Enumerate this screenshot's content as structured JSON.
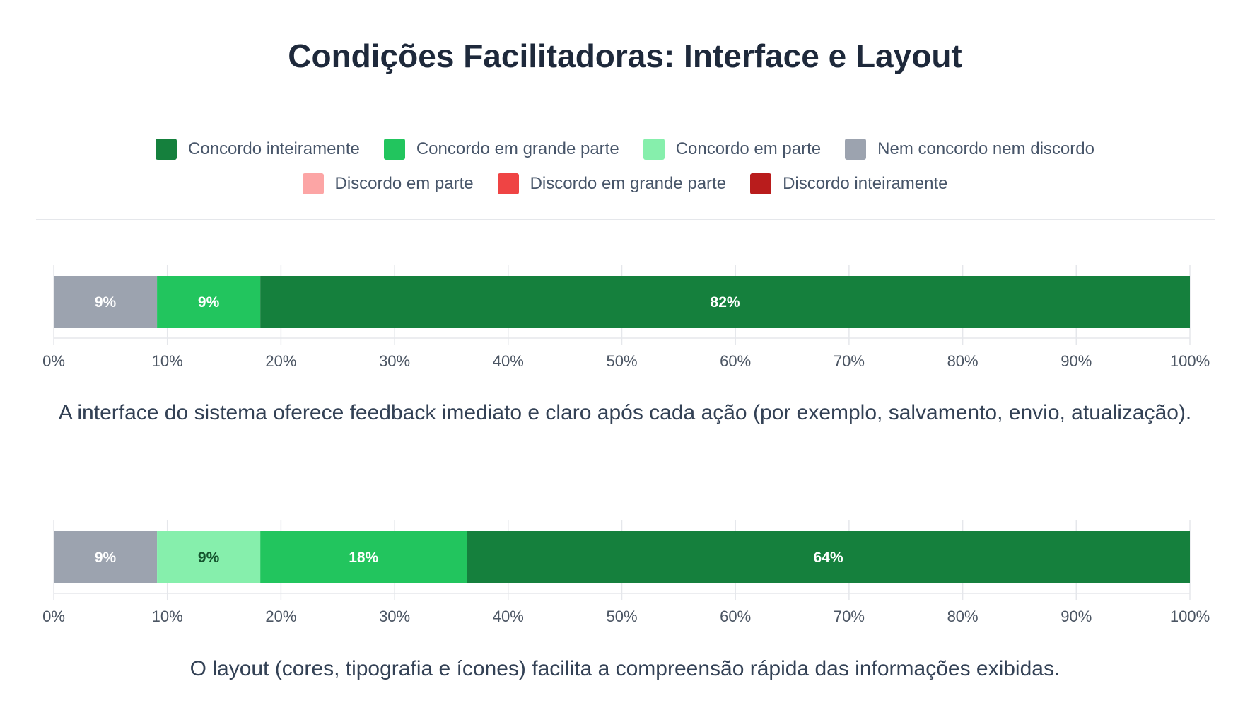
{
  "title": "Condições Facilitadoras: Interface e Layout",
  "legend": [
    {
      "label": "Concordo inteiramente",
      "color": "#15803d"
    },
    {
      "label": "Concordo em grande parte",
      "color": "#22c55e"
    },
    {
      "label": "Concordo em parte",
      "color": "#86efac"
    },
    {
      "label": "Nem concordo nem discordo",
      "color": "#9ca3af"
    },
    {
      "label": "Discordo em parte",
      "color": "#fca5a5"
    },
    {
      "label": "Discordo em grande parte",
      "color": "#ef4444"
    },
    {
      "label": "Discordo inteiramente",
      "color": "#b91c1c"
    }
  ],
  "chart_data": [
    {
      "type": "bar",
      "orientation": "horizontal-stacked",
      "xlim": [
        0,
        100
      ],
      "xticks": [
        "0%",
        "10%",
        "20%",
        "30%",
        "40%",
        "50%",
        "60%",
        "70%",
        "80%",
        "90%",
        "100%"
      ],
      "question": "A interface do sistema oferece feedback imediato e claro após cada ação (por exemplo, salvamento, envio, atualização).",
      "segments": [
        {
          "category": "Nem concordo nem discordo",
          "value": 9.09,
          "label": "9%",
          "color": "#9ca3af",
          "text_color": "#ffffff"
        },
        {
          "category": "Concordo em grande parte",
          "value": 9.09,
          "label": "9%",
          "color": "#22c55e",
          "text_color": "#ffffff"
        },
        {
          "category": "Concordo inteiramente",
          "value": 81.82,
          "label": "82%",
          "color": "#15803d",
          "text_color": "#ffffff"
        }
      ]
    },
    {
      "type": "bar",
      "orientation": "horizontal-stacked",
      "xlim": [
        0,
        100
      ],
      "xticks": [
        "0%",
        "10%",
        "20%",
        "30%",
        "40%",
        "50%",
        "60%",
        "70%",
        "80%",
        "90%",
        "100%"
      ],
      "question": "O layout (cores, tipografia e ícones) facilita a compreensão rápida das informações exibidas.",
      "segments": [
        {
          "category": "Nem concordo nem discordo",
          "value": 9.09,
          "label": "9%",
          "color": "#9ca3af",
          "text_color": "#ffffff"
        },
        {
          "category": "Concordo em parte",
          "value": 9.09,
          "label": "9%",
          "color": "#86efac",
          "text_color": "#14532d"
        },
        {
          "category": "Concordo em grande parte",
          "value": 18.18,
          "label": "18%",
          "color": "#22c55e",
          "text_color": "#ffffff"
        },
        {
          "category": "Concordo inteiramente",
          "value": 63.64,
          "label": "64%",
          "color": "#15803d",
          "text_color": "#ffffff"
        }
      ]
    }
  ]
}
